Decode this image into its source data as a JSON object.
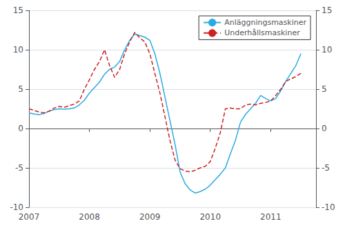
{
  "chart_data": {
    "type": "line",
    "x": [
      2007.0,
      2007.083,
      2007.167,
      2007.25,
      2007.333,
      2007.417,
      2007.5,
      2007.583,
      2007.667,
      2007.75,
      2007.833,
      2007.917,
      2008.0,
      2008.083,
      2008.167,
      2008.25,
      2008.333,
      2008.417,
      2008.5,
      2008.583,
      2008.667,
      2008.75,
      2008.833,
      2008.917,
      2009.0,
      2009.083,
      2009.167,
      2009.25,
      2009.333,
      2009.417,
      2009.5,
      2009.583,
      2009.667,
      2009.75,
      2009.833,
      2009.917,
      2010.0,
      2010.083,
      2010.167,
      2010.25,
      2010.333,
      2010.417,
      2010.5,
      2010.583,
      2010.667,
      2010.75,
      2010.833,
      2010.917,
      2011.0,
      2011.083,
      2011.167,
      2011.25,
      2011.333,
      2011.417,
      2011.5
    ],
    "series": [
      {
        "name": "Anläggningsmaskiner",
        "color": "#29ABE2",
        "line_style": "solid",
        "values": [
          2.0,
          1.85,
          1.75,
          1.9,
          2.2,
          2.4,
          2.5,
          2.45,
          2.5,
          2.6,
          3.0,
          3.6,
          4.5,
          5.2,
          5.9,
          6.9,
          7.5,
          7.8,
          8.5,
          10.0,
          11.2,
          12.0,
          11.8,
          11.6,
          11.2,
          9.5,
          7.0,
          4.0,
          1.0,
          -2.0,
          -5.5,
          -7.0,
          -7.8,
          -8.2,
          -8.0,
          -7.7,
          -7.2,
          -6.5,
          -5.8,
          -5.0,
          -3.2,
          -1.5,
          0.8,
          1.8,
          2.5,
          3.2,
          4.2,
          3.8,
          3.5,
          3.8,
          4.8,
          6.0,
          7.0,
          8.0,
          9.5
        ]
      },
      {
        "name": "Underhållsmaskiner",
        "color": "#CC2222",
        "line_style": "dashed",
        "values": [
          2.5,
          2.3,
          2.1,
          2.0,
          2.2,
          2.6,
          2.8,
          2.7,
          2.9,
          3.1,
          3.5,
          5.0,
          6.2,
          7.5,
          8.5,
          10.0,
          8.0,
          6.5,
          7.5,
          9.5,
          11.0,
          12.2,
          11.5,
          11.0,
          9.5,
          7.0,
          4.5,
          1.5,
          -1.5,
          -4.0,
          -5.1,
          -5.4,
          -5.5,
          -5.3,
          -5.0,
          -4.8,
          -4.2,
          -2.5,
          -0.5,
          2.5,
          2.6,
          2.5,
          2.5,
          3.0,
          3.1,
          3.0,
          3.2,
          3.3,
          3.5,
          4.2,
          5.0,
          6.0,
          6.3,
          6.6,
          7.0
        ]
      }
    ],
    "xlim": [
      2007.0,
      2011.75
    ],
    "xticks": [
      2007,
      2008,
      2009,
      2010,
      2011
    ],
    "ylim": [
      -10,
      15
    ],
    "yticks": [
      -10,
      -5,
      0,
      5,
      10,
      15
    ],
    "y2lim": [
      -10,
      15
    ],
    "y2ticks": [
      -10,
      -5,
      0,
      5,
      10,
      15
    ],
    "grid": true,
    "legend": "upper right"
  }
}
